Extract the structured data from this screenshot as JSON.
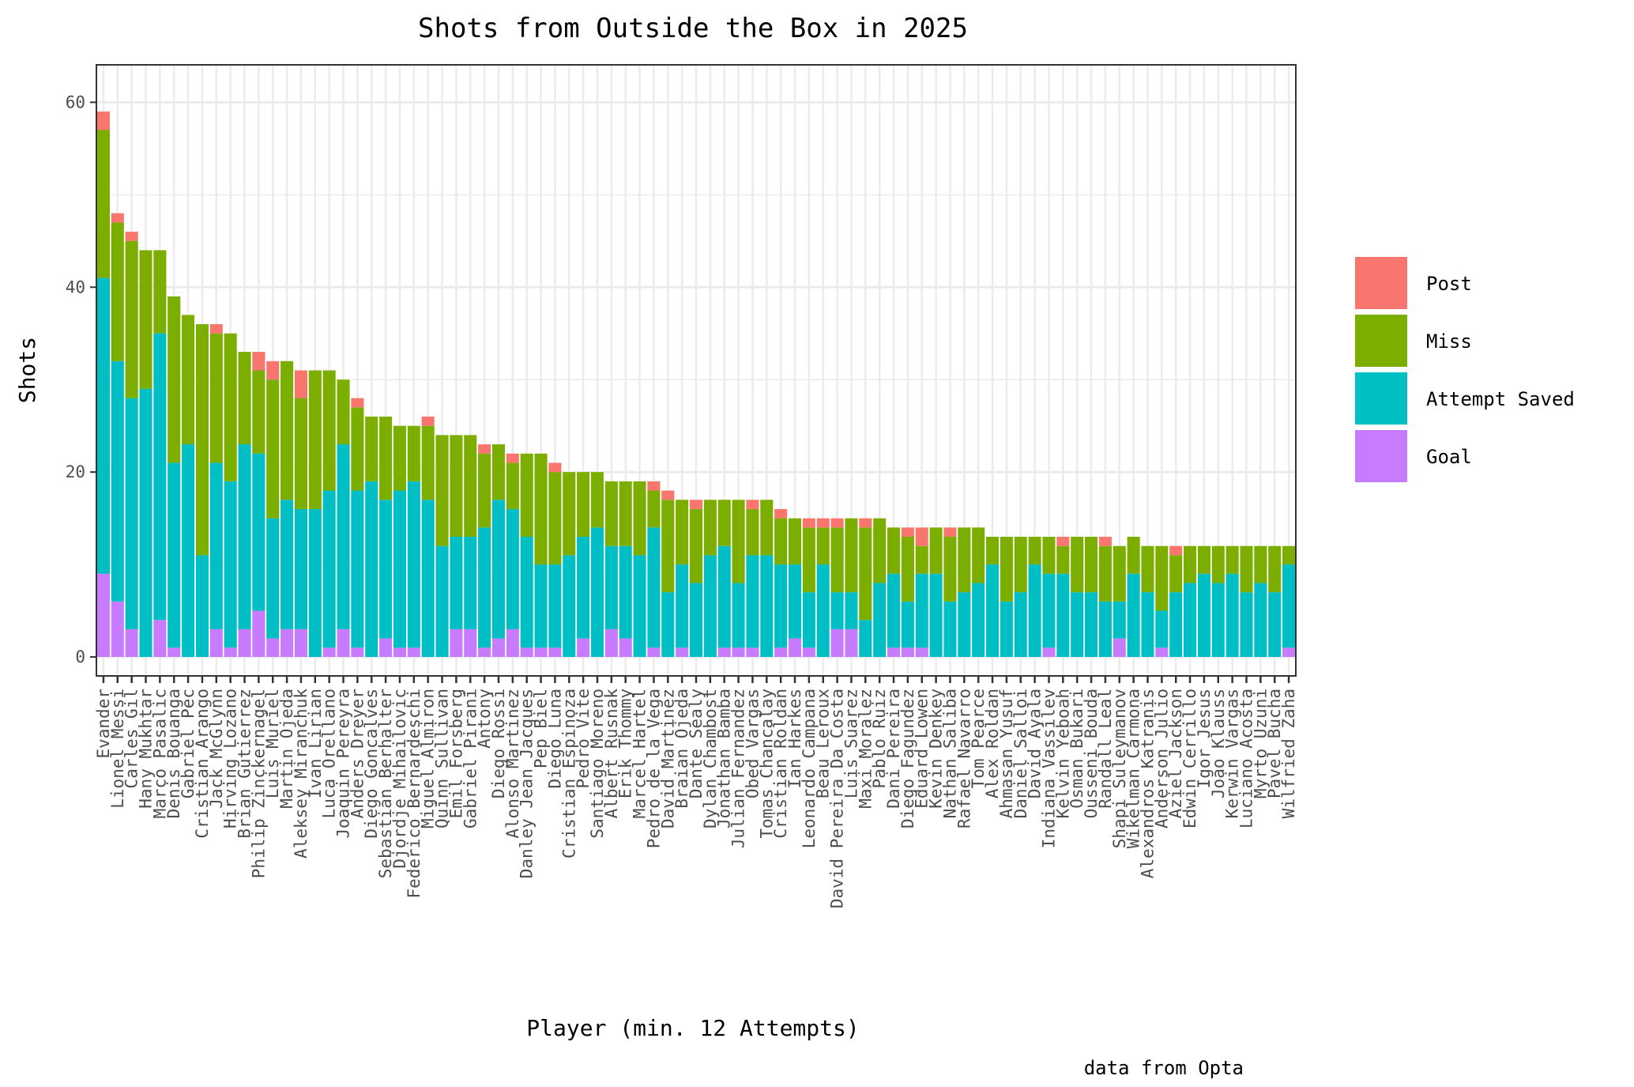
{
  "chart_data": {
    "type": "bar",
    "stacked": true,
    "title": "Shots from Outside the Box in 2025",
    "xlabel": "Player (min. 12 Attempts)",
    "ylabel": "Shots",
    "caption": "data from Opta",
    "ylim": [
      0,
      62
    ],
    "yticks": [
      0,
      20,
      40,
      60
    ],
    "grid": true,
    "legend_position": "right",
    "categories": [
      "Evander",
      "Lionel Messi",
      "Carles Gil",
      "Hany Mukhtar",
      "Marco Pasalic",
      "Denis Bouanga",
      "Gabriel Pec",
      "Cristian Arango",
      "Jack McGlynn",
      "Hirving Lozano",
      "Brian Gutierrez",
      "Philip Zinckernagel",
      "Luis Muriel",
      "Martin Ojeda",
      "Aleksey Miranchuk",
      "Ivan Lirian",
      "Luca Orellano",
      "Joaquin Pereyra",
      "Anders Dreyer",
      "Diego Goncalves",
      "Sebastian Berhalter",
      "Djordje Mihailovic",
      "Federico Bernardeschi",
      "Miguel Almiron",
      "Quinn Sullivan",
      "Emil Forsberg",
      "Gabriel Pirani",
      "Antony",
      "Diego Rossi",
      "Alonso Martinez",
      "Danley Jean Jacques",
      "Pep Biel",
      "Diego Luna",
      "Cristian Espinoza",
      "Pedro Vite",
      "Santiago Moreno",
      "Albert Rusnak",
      "Erik Thommy",
      "Marcel Hartel",
      "Pedro de la Vega",
      "David Martinez",
      "Braian Ojeda",
      "Dante Sealy",
      "Dylan Chambost",
      "Jonathan Bamba",
      "Julian Fernandez",
      "Obed Vargas",
      "Tomas Chancalay",
      "Cristian Roldan",
      "Ian Harkes",
      "Leonardo Campana",
      "Beau Leroux",
      "David Pereira Da Costa",
      "Luis Suarez",
      "Maxi Moralez",
      "Pablo Ruiz",
      "Dani Pereira",
      "Diego Fagundez",
      "Eduard Lowen",
      "Kevin Denkey",
      "Nathan Saliba",
      "Rafael Navarro",
      "Tom Pearce",
      "Alex Roldan",
      "Ahmasan Yusuf",
      "Daniel Salloi",
      "David Ayala",
      "Indiana Vassilev",
      "Kelvin Yeboah",
      "Osman Bukari",
      "Ousseni Bouda",
      "Randall Leal",
      "Shapi Suleymanov",
      "Wikelman Carmona",
      "Alexandros Katranis",
      "Anderson Julio",
      "Aziel Jackson",
      "Edwin Cerrillo",
      "Igor Jesus",
      "Joao Klauss",
      "Kerwin Vargas",
      "Luciano Acosta",
      "Myrto Uzuni",
      "Pavel Bucha",
      "Wilfried Zaha"
    ],
    "series": [
      {
        "name": "Goal",
        "color": "#C77CFF",
        "values": [
          9,
          6,
          3,
          0,
          4,
          1,
          0,
          0,
          3,
          1,
          3,
          5,
          2,
          3,
          3,
          0,
          1,
          3,
          1,
          0,
          2,
          1,
          1,
          0,
          0,
          3,
          3,
          1,
          2,
          3,
          1,
          1,
          1,
          0,
          2,
          0,
          3,
          2,
          0,
          1,
          0,
          1,
          0,
          0,
          1,
          1,
          1,
          0,
          1,
          2,
          1,
          0,
          3,
          3,
          0,
          0,
          1,
          1,
          1,
          0,
          0,
          0,
          0,
          0,
          0,
          0,
          0,
          1,
          0,
          0,
          0,
          0,
          2,
          0,
          0,
          1,
          0,
          0,
          0,
          0,
          0,
          0,
          0,
          0,
          1
        ]
      },
      {
        "name": "Attempt Saved",
        "color": "#00BFC4",
        "values": [
          32,
          26,
          25,
          29,
          31,
          20,
          23,
          11,
          18,
          18,
          20,
          17,
          13,
          14,
          13,
          16,
          17,
          20,
          17,
          19,
          15,
          17,
          18,
          17,
          12,
          10,
          10,
          13,
          15,
          13,
          12,
          9,
          9,
          11,
          11,
          14,
          9,
          10,
          11,
          13,
          7,
          9,
          8,
          11,
          11,
          7,
          10,
          11,
          9,
          8,
          6,
          10,
          4,
          4,
          4,
          8,
          8,
          5,
          8,
          9,
          6,
          7,
          8,
          10,
          6,
          7,
          10,
          8,
          9,
          7,
          7,
          6,
          4,
          9,
          7,
          4,
          7,
          8,
          9,
          8,
          9,
          7,
          8,
          7,
          9
        ]
      },
      {
        "name": "Miss",
        "color": "#7CAE00",
        "values": [
          16,
          15,
          17,
          15,
          9,
          18,
          14,
          25,
          14,
          16,
          10,
          9,
          15,
          15,
          12,
          15,
          13,
          7,
          9,
          7,
          9,
          7,
          6,
          8,
          12,
          11,
          11,
          8,
          6,
          5,
          9,
          12,
          10,
          9,
          7,
          6,
          7,
          7,
          8,
          4,
          10,
          7,
          8,
          6,
          5,
          9,
          5,
          6,
          5,
          5,
          7,
          4,
          7,
          8,
          10,
          7,
          5,
          7,
          3,
          5,
          7,
          7,
          6,
          3,
          7,
          6,
          3,
          4,
          3,
          6,
          6,
          6,
          6,
          4,
          5,
          7,
          4,
          4,
          3,
          4,
          3,
          5,
          4,
          5,
          2
        ]
      },
      {
        "name": "Post",
        "color": "#F8766D",
        "values": [
          2,
          1,
          1,
          0,
          0,
          0,
          0,
          0,
          1,
          0,
          0,
          2,
          2,
          0,
          3,
          0,
          0,
          0,
          1,
          0,
          0,
          0,
          0,
          1,
          0,
          0,
          0,
          1,
          0,
          1,
          0,
          0,
          1,
          0,
          0,
          0,
          0,
          0,
          0,
          1,
          1,
          0,
          1,
          0,
          0,
          0,
          1,
          0,
          1,
          0,
          1,
          1,
          1,
          0,
          1,
          0,
          0,
          1,
          2,
          0,
          1,
          0,
          0,
          0,
          0,
          0,
          0,
          0,
          1,
          0,
          0,
          1,
          0,
          0,
          0,
          0,
          1,
          0,
          0,
          0,
          0,
          0,
          0,
          0,
          0
        ]
      }
    ]
  }
}
